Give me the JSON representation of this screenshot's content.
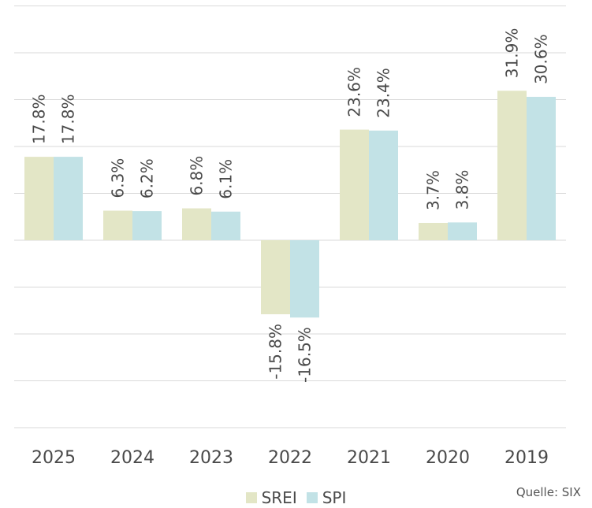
{
  "chart_data": {
    "type": "bar",
    "categories": [
      "2025",
      "2024",
      "2023",
      "2022",
      "2021",
      "2020",
      "2019"
    ],
    "series": [
      {
        "name": "SREI",
        "color": "#e3e6c6",
        "values": [
          17.8,
          6.3,
          6.8,
          -15.8,
          23.6,
          3.7,
          31.9
        ],
        "labels": [
          "17.8%",
          "6.3%",
          "6.8%",
          "-15.8%",
          "23.6%",
          "3.7%",
          "31.9%"
        ]
      },
      {
        "name": "SPI",
        "color": "#c2e2e6",
        "values": [
          17.8,
          6.2,
          6.1,
          -16.5,
          23.4,
          3.8,
          30.6
        ],
        "labels": [
          "17.8%",
          "6.2%",
          "6.1%",
          "-16.5%",
          "23.4%",
          "3.8%",
          "30.6%"
        ]
      }
    ],
    "ylim": [
      -40,
      50
    ],
    "grid": true,
    "legend_position": "bottom-center"
  },
  "source": "Quelle: SIX"
}
